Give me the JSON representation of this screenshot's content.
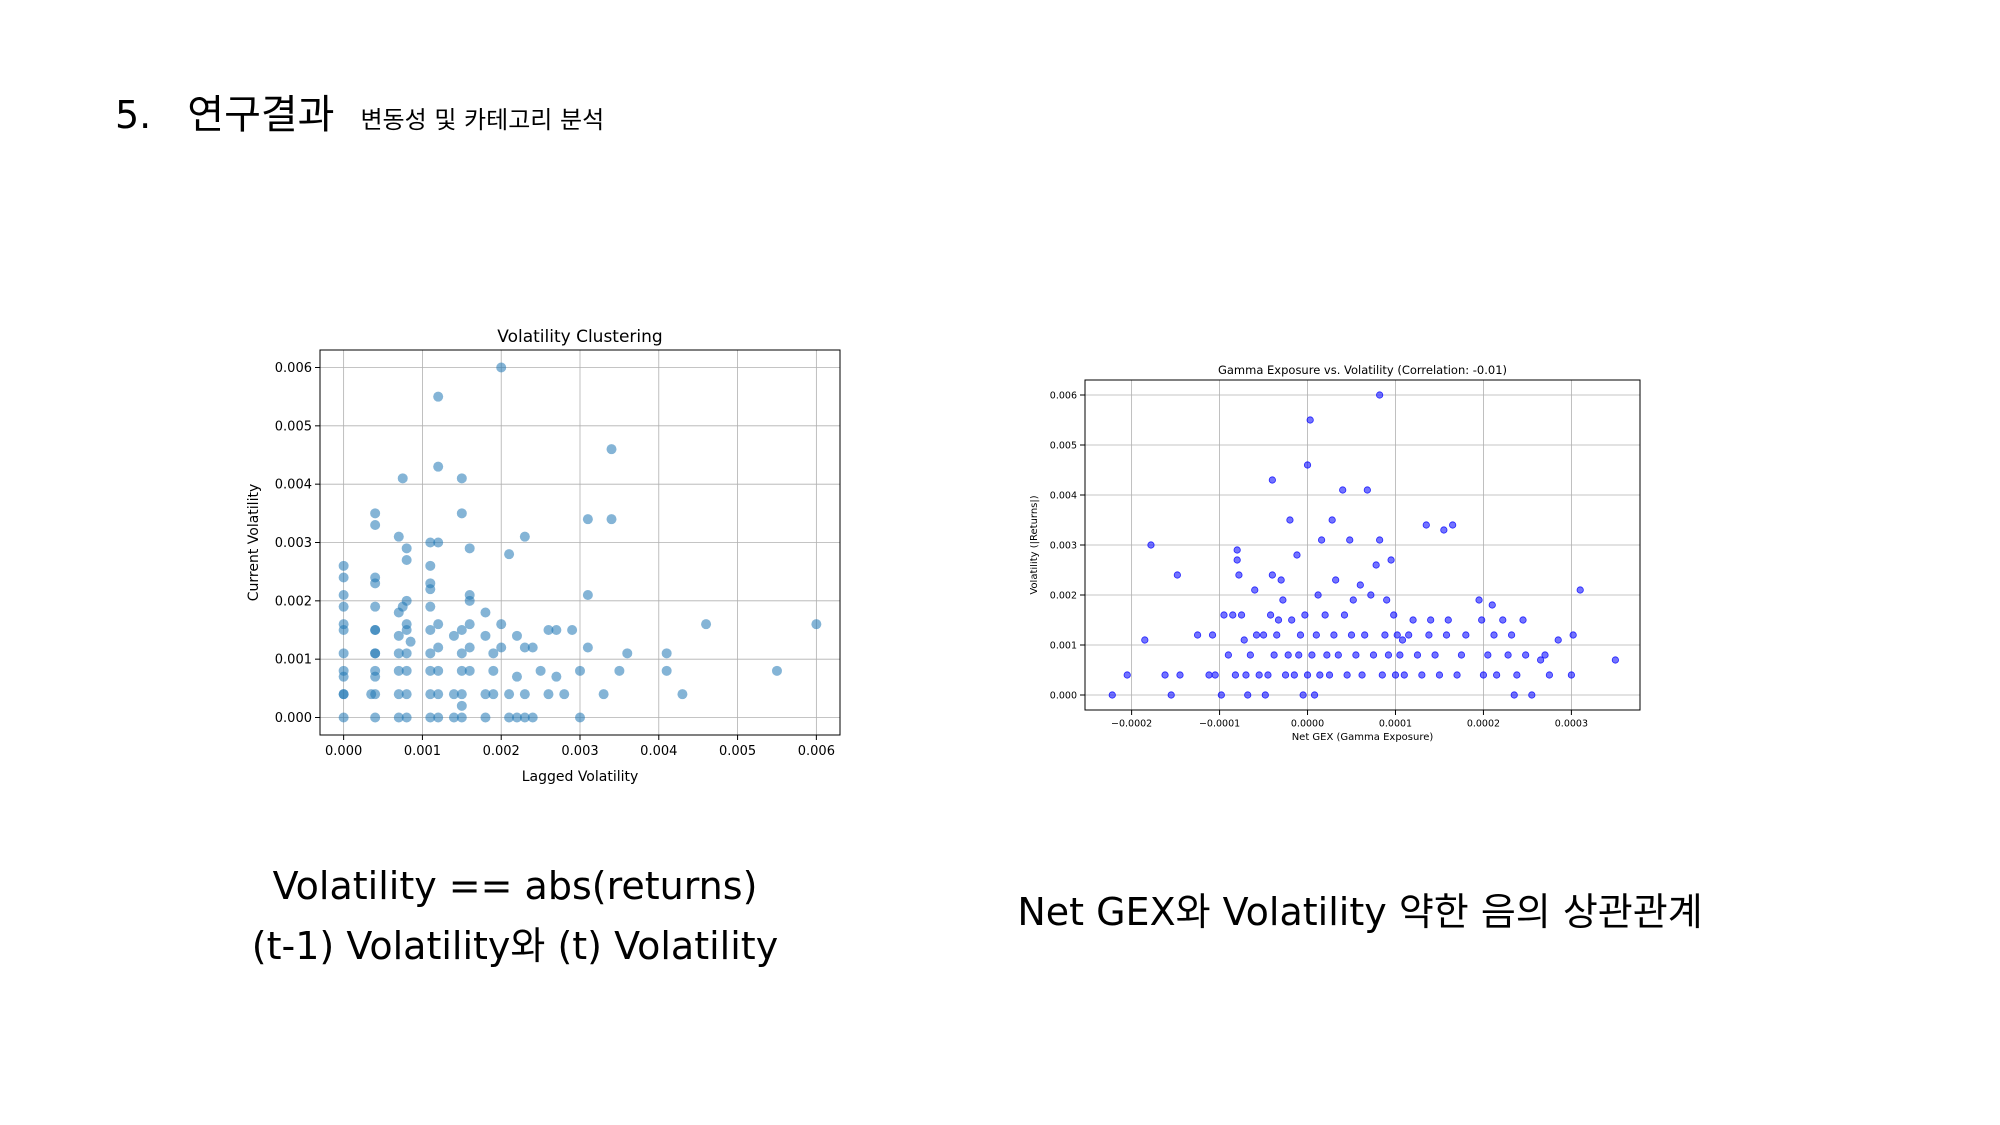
{
  "slide": {
    "number": "5.",
    "title": "연구결과",
    "subtitle": "변동성 및 카테고리 분석"
  },
  "captions": {
    "left_line1": "Volatility == abs(returns)",
    "left_line2": "(t-1) Volatility와 (t) Volatility",
    "right": "Net GEX와 Volatility 약한 음의 상관관계"
  },
  "chart_data": [
    {
      "type": "scatter",
      "title": "Volatility Clustering",
      "xlabel": "Lagged Volatility",
      "ylabel": "Current Volatility",
      "xlim": [
        -0.0003,
        0.0063
      ],
      "ylim": [
        -0.0003,
        0.0063
      ],
      "xticks": [
        0.0,
        0.001,
        0.002,
        0.003,
        0.004,
        0.005,
        0.006
      ],
      "yticks": [
        0.0,
        0.001,
        0.002,
        0.003,
        0.004,
        0.005,
        0.006
      ],
      "grid": true,
      "color": "#1f77b4",
      "alpha": 0.55,
      "points": [
        [
          0,
          0
        ],
        [
          0,
          0.0004
        ],
        [
          0,
          0.0008
        ],
        [
          0,
          0.0011
        ],
        [
          0,
          0.0016
        ],
        [
          0,
          0.0019
        ],
        [
          0,
          0.0021
        ],
        [
          0,
          0.0024
        ],
        [
          0,
          0.0026
        ],
        [
          0,
          0.0015
        ],
        [
          0,
          0.0007
        ],
        [
          0,
          0.0004
        ],
        [
          0.0004,
          0
        ],
        [
          0.0004,
          0.0004
        ],
        [
          0.0004,
          0.0008
        ],
        [
          0.0004,
          0.0011
        ],
        [
          0.0004,
          0.0015
        ],
        [
          0.0004,
          0.0019
        ],
        [
          0.0004,
          0.0023
        ],
        [
          0.0004,
          0.0024
        ],
        [
          0.0004,
          0.0033
        ],
        [
          0.0004,
          0.0035
        ],
        [
          0.00035,
          0.0004
        ],
        [
          0.0004,
          0.0007
        ],
        [
          0.0004,
          0.0011
        ],
        [
          0.0004,
          0.0015
        ],
        [
          0.0007,
          0
        ],
        [
          0.0008,
          0
        ],
        [
          0.0007,
          0.0004
        ],
        [
          0.0008,
          0.0004
        ],
        [
          0.0007,
          0.0008
        ],
        [
          0.0008,
          0.0008
        ],
        [
          0.0007,
          0.0011
        ],
        [
          0.0008,
          0.0011
        ],
        [
          0.0007,
          0.0014
        ],
        [
          0.0008,
          0.0015
        ],
        [
          0.0008,
          0.0016
        ],
        [
          0.0007,
          0.0018
        ],
        [
          0.0008,
          0.002
        ],
        [
          0.0008,
          0.0027
        ],
        [
          0.0008,
          0.0029
        ],
        [
          0.0007,
          0.0031
        ],
        [
          0.00075,
          0.0041
        ],
        [
          0.00075,
          0.0019
        ],
        [
          0.00085,
          0.0013
        ],
        [
          0.0011,
          0
        ],
        [
          0.0012,
          0
        ],
        [
          0.0011,
          0.0004
        ],
        [
          0.0012,
          0.0004
        ],
        [
          0.0011,
          0.0008
        ],
        [
          0.0012,
          0.0008
        ],
        [
          0.0011,
          0.0011
        ],
        [
          0.0012,
          0.0012
        ],
        [
          0.0011,
          0.0015
        ],
        [
          0.0012,
          0.0016
        ],
        [
          0.0011,
          0.0019
        ],
        [
          0.0011,
          0.0022
        ],
        [
          0.0011,
          0.0023
        ],
        [
          0.0011,
          0.0026
        ],
        [
          0.0011,
          0.003
        ],
        [
          0.0012,
          0.003
        ],
        [
          0.0012,
          0.0043
        ],
        [
          0.0012,
          0.0055
        ],
        [
          0.0014,
          0
        ],
        [
          0.0015,
          0
        ],
        [
          0.0014,
          0.0004
        ],
        [
          0.0015,
          0.0004
        ],
        [
          0.0015,
          0.0008
        ],
        [
          0.0016,
          0.0008
        ],
        [
          0.0015,
          0.0011
        ],
        [
          0.0016,
          0.0012
        ],
        [
          0.0015,
          0.0015
        ],
        [
          0.0016,
          0.0016
        ],
        [
          0.0016,
          0.002
        ],
        [
          0.0016,
          0.0021
        ],
        [
          0.0016,
          0.0029
        ],
        [
          0.0015,
          0.0035
        ],
        [
          0.0015,
          0.0041
        ],
        [
          0.0014,
          0.0014
        ],
        [
          0.0015,
          0.0002
        ],
        [
          0.0018,
          0
        ],
        [
          0.0018,
          0.0004
        ],
        [
          0.0019,
          0.0004
        ],
        [
          0.0019,
          0.0008
        ],
        [
          0.0019,
          0.0011
        ],
        [
          0.0018,
          0.0014
        ],
        [
          0.0018,
          0.0018
        ],
        [
          0.002,
          0.0012
        ],
        [
          0.002,
          0.0016
        ],
        [
          0.0021,
          0.0028
        ],
        [
          0.002,
          0.006
        ],
        [
          0.0021,
          0
        ],
        [
          0.0022,
          0
        ],
        [
          0.0023,
          0
        ],
        [
          0.0024,
          0
        ],
        [
          0.0021,
          0.0004
        ],
        [
          0.0022,
          0.0007
        ],
        [
          0.0023,
          0.0004
        ],
        [
          0.0023,
          0.0012
        ],
        [
          0.0022,
          0.0014
        ],
        [
          0.0024,
          0.0012
        ],
        [
          0.0023,
          0.0031
        ],
        [
          0.0025,
          0.0008
        ],
        [
          0.0026,
          0.0004
        ],
        [
          0.0026,
          0.0015
        ],
        [
          0.0027,
          0.0007
        ],
        [
          0.0027,
          0.0015
        ],
        [
          0.0028,
          0.0004
        ],
        [
          0.0029,
          0.0015
        ],
        [
          0.003,
          0.0008
        ],
        [
          0.003,
          0
        ],
        [
          0.0031,
          0.0012
        ],
        [
          0.0031,
          0.0034
        ],
        [
          0.0031,
          0.0021
        ],
        [
          0.0033,
          0.0004
        ],
        [
          0.0034,
          0.0034
        ],
        [
          0.0034,
          0.0046
        ],
        [
          0.0035,
          0.0008
        ],
        [
          0.0036,
          0.0011
        ],
        [
          0.0041,
          0.0011
        ],
        [
          0.0041,
          0.0008
        ],
        [
          0.0043,
          0.0004
        ],
        [
          0.0046,
          0.0016
        ],
        [
          0.0055,
          0.0008
        ],
        [
          0.006,
          0.0016
        ]
      ]
    },
    {
      "type": "scatter",
      "title": "Gamma Exposure vs. Volatility (Correlation: -0.01)",
      "xlabel": "Net GEX (Gamma Exposure)",
      "ylabel": "Volatility (|Returns|)",
      "xlim": [
        -0.000253,
        0.000378
      ],
      "ylim": [
        -0.0003,
        0.0063
      ],
      "xticks": [
        -0.0002,
        -0.0001,
        0.0,
        0.0001,
        0.0002,
        0.0003
      ],
      "xtick_labels": [
        "−0.0002",
        "−0.0001",
        "0.0000",
        "0.0001",
        "0.0002",
        "0.0003"
      ],
      "yticks": [
        0.0,
        0.001,
        0.002,
        0.003,
        0.004,
        0.005,
        0.006
      ],
      "grid": true,
      "color": "#0000ff",
      "alpha": 0.55,
      "points": [
        [
          -0.000222,
          0
        ],
        [
          -0.000205,
          0.0004
        ],
        [
          -0.000185,
          0.0011
        ],
        [
          -0.000178,
          0.003
        ],
        [
          -0.000162,
          0.0004
        ],
        [
          -0.000155,
          0
        ],
        [
          -0.000148,
          0.0024
        ],
        [
          -0.000145,
          0.0004
        ],
        [
          -0.000125,
          0.0012
        ],
        [
          -0.000112,
          0.0004
        ],
        [
          -0.000108,
          0.0012
        ],
        [
          -0.000105,
          0.0004
        ],
        [
          -9.8e-05,
          0
        ],
        [
          -9.5e-05,
          0.0016
        ],
        [
          -9e-05,
          0.0008
        ],
        [
          -8.5e-05,
          0.0016
        ],
        [
          -8.2e-05,
          0.0004
        ],
        [
          -8e-05,
          0.0027
        ],
        [
          -8e-05,
          0.0029
        ],
        [
          -7.8e-05,
          0.0024
        ],
        [
          -7.5e-05,
          0.0016
        ],
        [
          -7.2e-05,
          0.0011
        ],
        [
          -7e-05,
          0.0004
        ],
        [
          -6.8e-05,
          0
        ],
        [
          -6.5e-05,
          0.0008
        ],
        [
          -6e-05,
          0.0021
        ],
        [
          -5.8e-05,
          0.0012
        ],
        [
          -5.5e-05,
          0.0004
        ],
        [
          -5e-05,
          0.0012
        ],
        [
          -4.8e-05,
          0
        ],
        [
          -4.5e-05,
          0.0004
        ],
        [
          -4.2e-05,
          0.0016
        ],
        [
          -4e-05,
          0.0043
        ],
        [
          -4e-05,
          0.0024
        ],
        [
          -3.8e-05,
          0.0008
        ],
        [
          -3.5e-05,
          0.0012
        ],
        [
          -3.3e-05,
          0.0015
        ],
        [
          -3e-05,
          0.0023
        ],
        [
          -2.8e-05,
          0.0019
        ],
        [
          -2.5e-05,
          0.0004
        ],
        [
          -2.2e-05,
          0.0008
        ],
        [
          -2e-05,
          0.0035
        ],
        [
          -1.8e-05,
          0.0015
        ],
        [
          -1.5e-05,
          0.0004
        ],
        [
          -1.2e-05,
          0.0028
        ],
        [
          -1e-05,
          0.0008
        ],
        [
          -8e-06,
          0.0012
        ],
        [
          -5e-06,
          0
        ],
        [
          -3e-06,
          0.0016
        ],
        [
          0,
          0.0004
        ],
        [
          0,
          0.0046
        ],
        [
          3e-06,
          0.0055
        ],
        [
          5e-06,
          0.0008
        ],
        [
          8e-06,
          0
        ],
        [
          1e-05,
          0.0012
        ],
        [
          1.2e-05,
          0.002
        ],
        [
          1.4e-05,
          0.0004
        ],
        [
          1.6e-05,
          0.0031
        ],
        [
          2e-05,
          0.0016
        ],
        [
          2.2e-05,
          0.0008
        ],
        [
          2.5e-05,
          0.0004
        ],
        [
          2.8e-05,
          0.0035
        ],
        [
          3e-05,
          0.0012
        ],
        [
          3.2e-05,
          0.0023
        ],
        [
          3.5e-05,
          0.0008
        ],
        [
          4e-05,
          0.0041
        ],
        [
          4.2e-05,
          0.0016
        ],
        [
          4.5e-05,
          0.0004
        ],
        [
          4.8e-05,
          0.0031
        ],
        [
          5e-05,
          0.0012
        ],
        [
          5.2e-05,
          0.0019
        ],
        [
          5.5e-05,
          0.0008
        ],
        [
          6e-05,
          0.0022
        ],
        [
          6.2e-05,
          0.0004
        ],
        [
          6.5e-05,
          0.0012
        ],
        [
          6.8e-05,
          0.0041
        ],
        [
          7.2e-05,
          0.002
        ],
        [
          7.5e-05,
          0.0008
        ],
        [
          7.8e-05,
          0.0026
        ],
        [
          8.2e-05,
          0.006
        ],
        [
          8.2e-05,
          0.0031
        ],
        [
          8.5e-05,
          0.0004
        ],
        [
          8.8e-05,
          0.0012
        ],
        [
          9e-05,
          0.0019
        ],
        [
          9.2e-05,
          0.0008
        ],
        [
          9.5e-05,
          0.0027
        ],
        [
          9.8e-05,
          0.0016
        ],
        [
          0.0001,
          0.0004
        ],
        [
          0.000102,
          0.0012
        ],
        [
          0.000105,
          0.0008
        ],
        [
          0.000108,
          0.0011
        ],
        [
          0.00011,
          0.0004
        ],
        [
          0.000115,
          0.0012
        ],
        [
          0.00012,
          0.0015
        ],
        [
          0.000125,
          0.0008
        ],
        [
          0.00013,
          0.0004
        ],
        [
          0.000135,
          0.0034
        ],
        [
          0.000138,
          0.0012
        ],
        [
          0.00014,
          0.0015
        ],
        [
          0.000145,
          0.0008
        ],
        [
          0.00015,
          0.0004
        ],
        [
          0.000155,
          0.0033
        ],
        [
          0.000158,
          0.0012
        ],
        [
          0.00016,
          0.0015
        ],
        [
          0.000165,
          0.0034
        ],
        [
          0.00017,
          0.0004
        ],
        [
          0.000175,
          0.0008
        ],
        [
          0.00018,
          0.0012
        ],
        [
          0.000195,
          0.0019
        ],
        [
          0.000198,
          0.0015
        ],
        [
          0.0002,
          0.0004
        ],
        [
          0.000205,
          0.0008
        ],
        [
          0.00021,
          0.0018
        ],
        [
          0.000212,
          0.0012
        ],
        [
          0.000215,
          0.0004
        ],
        [
          0.000222,
          0.0015
        ],
        [
          0.000228,
          0.0008
        ],
        [
          0.000232,
          0.0012
        ],
        [
          0.000235,
          0
        ],
        [
          0.000238,
          0.0004
        ],
        [
          0.000245,
          0.0015
        ],
        [
          0.000248,
          0.0008
        ],
        [
          0.000255,
          0
        ],
        [
          0.000265,
          0.0007
        ],
        [
          0.00027,
          0.0008
        ],
        [
          0.000275,
          0.0004
        ],
        [
          0.000285,
          0.0011
        ],
        [
          0.0003,
          0.0004
        ],
        [
          0.000302,
          0.0012
        ],
        [
          0.00031,
          0.0021
        ],
        [
          0.00035,
          0.0007
        ]
      ]
    }
  ]
}
